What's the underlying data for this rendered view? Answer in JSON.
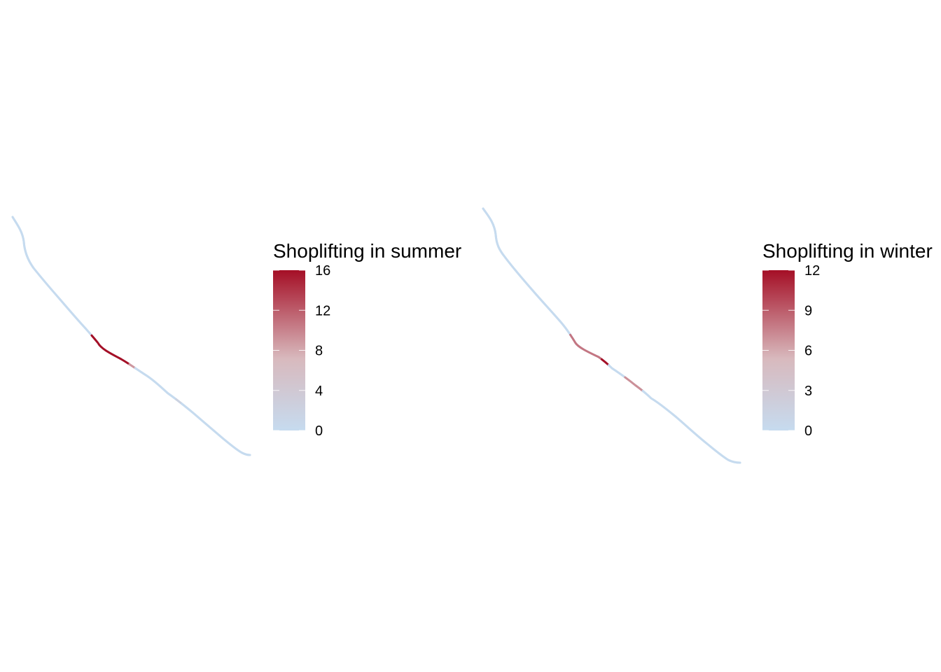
{
  "colors": {
    "low": "#c6dbef",
    "mid": "#d8b9bd",
    "high": "#a50f26"
  },
  "chart_data": [
    {
      "type": "map",
      "legend_title": "Shoplifting in summer",
      "scale": {
        "min": 0,
        "max": 16
      },
      "legend_ticks": [
        0,
        4,
        8,
        12,
        16
      ],
      "segments": [
        {
          "from": 0.0,
          "to": 0.42,
          "value": 0
        },
        {
          "from": 0.42,
          "to": 0.56,
          "value": 16
        },
        {
          "from": 0.56,
          "to": 0.58,
          "value": 9
        },
        {
          "from": 0.58,
          "to": 0.73,
          "value": 0
        },
        {
          "from": 0.73,
          "to": 0.75,
          "value": 2
        },
        {
          "from": 0.75,
          "to": 1.0,
          "value": 0
        }
      ]
    },
    {
      "type": "map",
      "legend_title": "Shoplifting in winter",
      "scale": {
        "min": 0,
        "max": 12
      },
      "legend_ticks": [
        0,
        3,
        6,
        9,
        12
      ],
      "segments": [
        {
          "from": 0.0,
          "to": 0.42,
          "value": 0
        },
        {
          "from": 0.42,
          "to": 0.53,
          "value": 8
        },
        {
          "from": 0.53,
          "to": 0.555,
          "value": 12
        },
        {
          "from": 0.555,
          "to": 0.61,
          "value": 0
        },
        {
          "from": 0.61,
          "to": 0.67,
          "value": 7
        },
        {
          "from": 0.67,
          "to": 1.0,
          "value": 0
        }
      ]
    }
  ]
}
